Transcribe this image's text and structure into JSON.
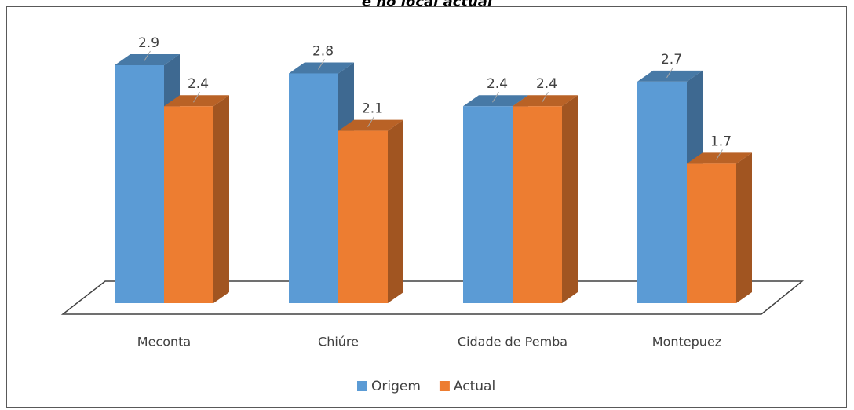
{
  "chart_data": {
    "type": "bar3d",
    "title": "e no local actual",
    "categories": [
      "Meconta",
      "Chiúre",
      "Cidade de Pemba",
      "Montepuez"
    ],
    "series": [
      {
        "name": "Origem",
        "color": "#5b9bd5",
        "values": [
          2.9,
          2.8,
          2.4,
          2.7
        ]
      },
      {
        "name": "Actual",
        "color": "#ed7d31",
        "values": [
          2.4,
          2.1,
          2.4,
          1.7
        ]
      }
    ],
    "legend": "bottom"
  }
}
